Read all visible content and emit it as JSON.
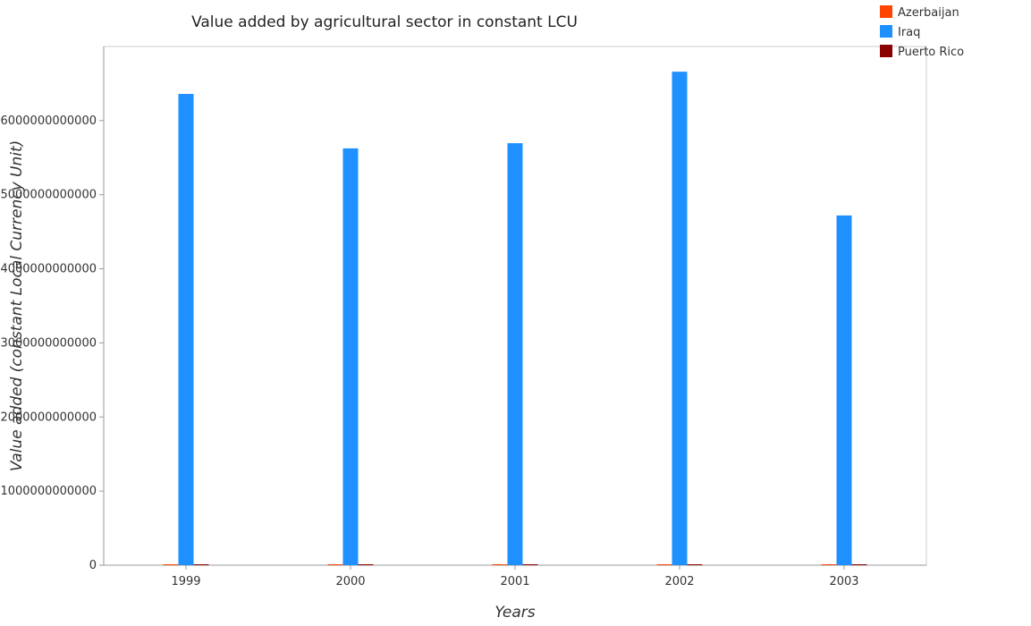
{
  "chart_data": {
    "type": "bar",
    "title": "Value added by agricultural sector in constant LCU",
    "xlabel": "Years",
    "ylabel": "Value added (constant Local Currency Unit)",
    "categories": [
      "1999",
      "2000",
      "2001",
      "2002",
      "2003"
    ],
    "ylim": [
      0,
      7000000000000
    ],
    "yticks": [
      0,
      1000000000000,
      2000000000000,
      3000000000000,
      4000000000000,
      5000000000000,
      6000000000000
    ],
    "ytick_labels": [
      "0",
      "1000000000000",
      "2000000000000",
      "3000000000000",
      "4000000000000",
      "5000000000000",
      "6000000000000"
    ],
    "legend_position": "top-right",
    "grid": false,
    "series": [
      {
        "name": "Azerbaijan",
        "color": "#ff4500",
        "values": [
          700000000,
          780000000,
          860000000,
          920000000,
          970000000
        ]
      },
      {
        "name": "Iraq",
        "color": "#1e90ff",
        "values": [
          6360000000000,
          5625000000000,
          5695000000000,
          6660000000000,
          4720000000000
        ]
      },
      {
        "name": "Puerto Rico",
        "color": "#8b0000",
        "values": [
          480000000,
          470000000,
          440000000,
          430000000,
          420000000
        ]
      }
    ]
  }
}
